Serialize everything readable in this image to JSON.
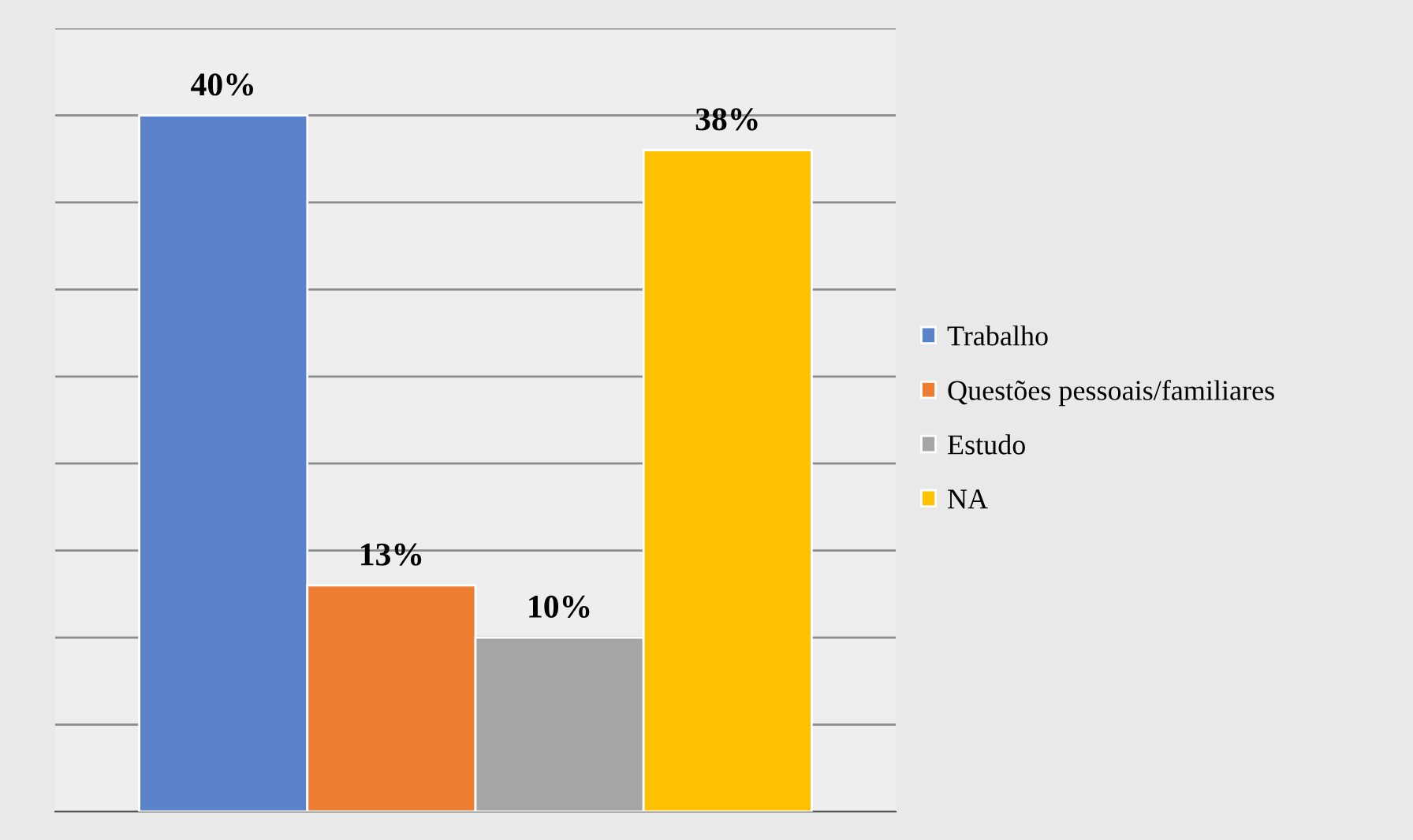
{
  "chart_data": {
    "type": "bar",
    "categories": [
      null
    ],
    "series": [
      {
        "name": "Trabalho",
        "color": "#5b83cc",
        "values": [
          40
        ],
        "value_labels": [
          "40%"
        ]
      },
      {
        "name": "Questões pessoais/familiares",
        "color": "#ed7d31",
        "values": [
          13
        ],
        "value_labels": [
          "13%"
        ]
      },
      {
        "name": "Estudo",
        "color": "#a5a5a5",
        "values": [
          10
        ],
        "value_labels": [
          "10%"
        ]
      },
      {
        "name": "NA",
        "color": "#ffc000",
        "values": [
          38
        ],
        "value_labels": [
          "38%"
        ]
      }
    ],
    "ylim": [
      0,
      45
    ],
    "yticks": [
      {
        "value": 0,
        "label": null
      },
      {
        "value": 5,
        "label": null
      },
      {
        "value": 10,
        "label": null
      },
      {
        "value": 15,
        "label": null
      },
      {
        "value": 20,
        "label": null
      },
      {
        "value": 25,
        "label": null
      },
      {
        "value": 30,
        "label": null
      },
      {
        "value": 35,
        "label": null
      },
      {
        "value": 40,
        "label": null
      },
      {
        "value": 45,
        "label": null
      }
    ],
    "grid": "y",
    "legend": "right"
  }
}
